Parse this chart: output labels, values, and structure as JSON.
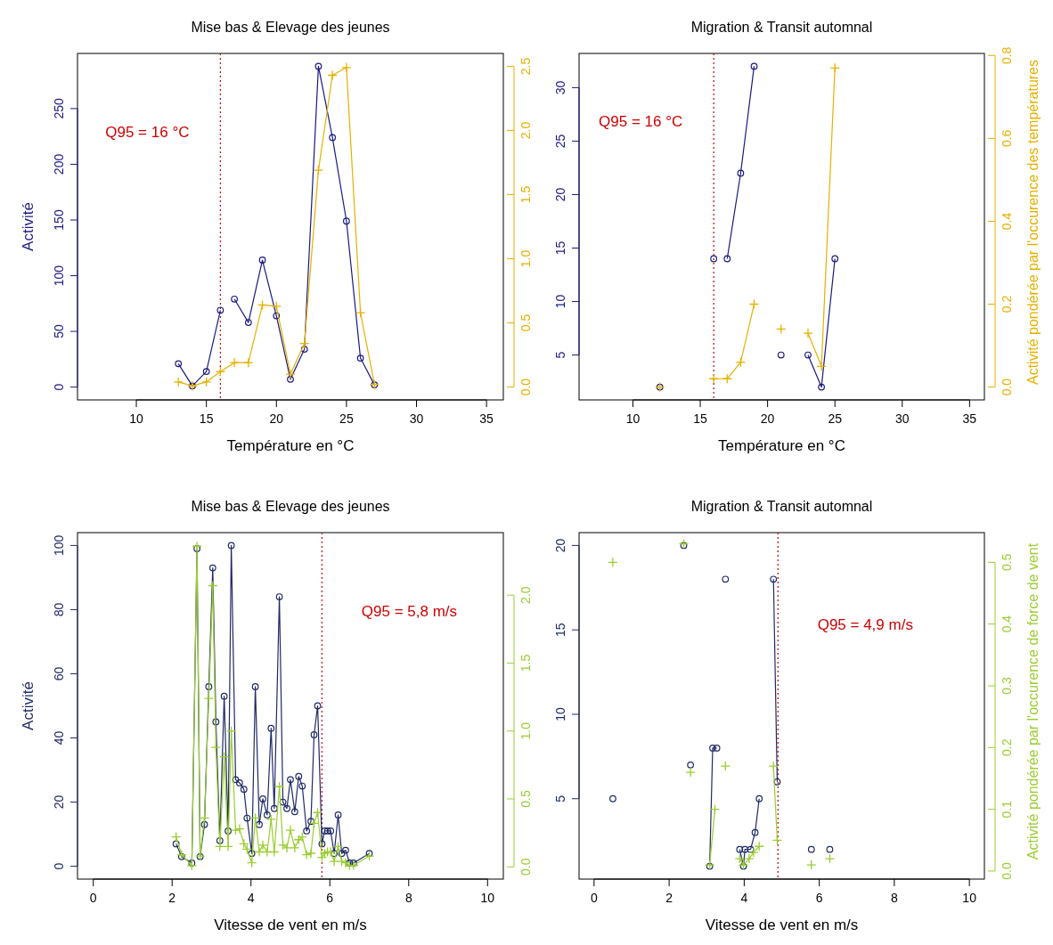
{
  "chart_data": [
    {
      "type": "line",
      "title": "Mise bas & Elevage des jeunes",
      "xlabel": "Température en °C",
      "ylabel": "Activité",
      "xlim": [
        5.8,
        36.2
      ],
      "xticks": [
        10,
        15,
        20,
        25,
        30,
        35
      ],
      "ylim": [
        -11.5,
        299.5
      ],
      "yticks": [
        0,
        50,
        100,
        150,
        200,
        250
      ],
      "y2lim": [
        -0.1,
        2.6
      ],
      "y2ticks": [
        {
          "value": 0,
          "label": "0.0"
        },
        {
          "value": 0.5,
          "label": "0.5"
        },
        {
          "value": 1,
          "label": "1.0"
        },
        {
          "value": 1.5,
          "label": "1.5"
        },
        {
          "value": 2,
          "label": "2.0"
        },
        {
          "value": 2.5,
          "label": "2.5"
        }
      ],
      "series": [
        {
          "color": "#1a1a80",
          "marker": "circle",
          "x": [
            13,
            14,
            15,
            16,
            16.5,
            17,
            18,
            19,
            20,
            21,
            22,
            23,
            24,
            25,
            26,
            27
          ],
          "values": [
            21,
            1,
            14,
            69,
            null,
            79,
            58,
            114,
            64,
            7,
            34,
            288,
            224,
            149,
            26,
            2
          ]
        },
        {
          "color": "#e6b000",
          "marker": "cross",
          "axis": "y2",
          "x": [
            13,
            14,
            15,
            16,
            17,
            18,
            19,
            20,
            21,
            22,
            23,
            24,
            25,
            26,
            27
          ],
          "values": [
            0.04,
            0.01,
            0.04,
            0.12,
            0.19,
            0.19,
            0.64,
            0.63,
            0.1,
            0.34,
            1.69,
            2.43,
            2.49,
            0.58,
            0.02
          ]
        }
      ],
      "ref_lines": [
        {
          "axis": "x",
          "value": 16,
          "color": "#cc0000",
          "line_style": "dotted",
          "label": "Q95 = 16 °C"
        }
      ]
    },
    {
      "type": "line",
      "title": "Migration & Transit automnal",
      "xlabel": "Température en °C",
      "y2label": "Activité pondérée par l'occurence des températures",
      "xlim": [
        6,
        36.1
      ],
      "xticks": [
        10,
        15,
        20,
        25,
        30,
        35
      ],
      "ylim": [
        0.8,
        33.2
      ],
      "yticks": [
        5,
        10,
        15,
        20,
        25,
        30
      ],
      "y2lim": [
        -0.031,
        0.805
      ],
      "y2ticks": [
        {
          "value": 0,
          "label": "0.0"
        },
        {
          "value": 0.2,
          "label": "0.2"
        },
        {
          "value": 0.4,
          "label": "0.4"
        },
        {
          "value": 0.6,
          "label": "0.6"
        },
        {
          "value": 0.8,
          "label": "0.8"
        }
      ],
      "series": [
        {
          "color": "#1a1a80",
          "marker": "circle",
          "x": [
            12,
            14,
            16,
            16.5,
            17,
            18,
            19,
            20,
            21,
            22,
            23,
            24,
            25
          ],
          "values": [
            2,
            null,
            14,
            null,
            14,
            22,
            32,
            null,
            5,
            null,
            5,
            2,
            14
          ]
        },
        {
          "color": "#e6b000",
          "marker": "cross",
          "axis": "y2",
          "x": [
            12,
            14,
            16,
            17,
            18,
            19,
            20,
            21,
            22,
            23,
            24,
            25
          ],
          "values": [
            0.0,
            null,
            0.02,
            0.02,
            0.06,
            0.2,
            null,
            0.14,
            null,
            0.13,
            0.05,
            0.77
          ]
        }
      ],
      "ref_lines": [
        {
          "axis": "x",
          "value": 16,
          "color": "#cc0000",
          "line_style": "dotted",
          "label": "Q95 = 16 °C"
        }
      ]
    },
    {
      "type": "line",
      "title": "Mise bas & Elevage des jeunes",
      "xlabel": "Vitesse de vent en m/s",
      "ylabel": "Activité",
      "xlim": [
        -0.4,
        10.4
      ],
      "xticks": [
        0,
        2,
        4,
        6,
        8,
        10
      ],
      "ylim": [
        -4,
        104
      ],
      "yticks": [
        0,
        20,
        40,
        60,
        80,
        100
      ],
      "y2lim": [
        -0.09,
        2.46
      ],
      "y2ticks": [
        {
          "value": 0,
          "label": "0.0"
        },
        {
          "value": 0.5,
          "label": "0.5"
        },
        {
          "value": 1,
          "label": "1.0"
        },
        {
          "value": 1.5,
          "label": "1.5"
        },
        {
          "value": 2,
          "label": "2.0"
        }
      ],
      "series": [
        {
          "color": "#1f2a66",
          "marker": "circle",
          "x": [
            2.1,
            2.24,
            2.5,
            2.63,
            2.71,
            2.82,
            2.93,
            3.03,
            3.11,
            3.21,
            3.32,
            3.42,
            3.5,
            3.61,
            3.71,
            3.82,
            3.9,
            4.02,
            4.11,
            4.21,
            4.3,
            4.41,
            4.51,
            4.59,
            4.72,
            4.81,
            4.91,
            5.0,
            5.11,
            5.21,
            5.3,
            5.41,
            5.52,
            5.6,
            5.69,
            5.8,
            5.87,
            5.94,
            6.02,
            6.11,
            6.21,
            6.3,
            6.4,
            6.5,
            6.6,
            7.0
          ],
          "values": [
            7,
            3,
            1,
            99,
            3,
            13,
            56,
            93,
            45,
            8,
            53,
            11,
            100,
            27,
            26,
            24,
            15,
            4,
            56,
            13,
            21,
            16,
            43,
            18,
            84,
            20,
            18,
            27,
            17,
            28,
            25,
            11,
            14,
            41,
            50,
            7,
            11,
            11,
            11,
            4,
            16,
            4,
            5,
            1,
            1,
            4
          ]
        },
        {
          "color": "#9acd32",
          "marker": "cross",
          "axis": "y2",
          "x": [
            2.1,
            2.24,
            2.5,
            2.63,
            2.71,
            2.82,
            2.93,
            3.03,
            3.11,
            3.21,
            3.32,
            3.42,
            3.5,
            3.61,
            3.71,
            3.82,
            3.9,
            4.02,
            4.11,
            4.21,
            4.3,
            4.41,
            4.51,
            4.59,
            4.72,
            4.81,
            4.91,
            5.0,
            5.11,
            5.21,
            5.3,
            5.41,
            5.52,
            5.6,
            5.69,
            5.8,
            5.87,
            5.94,
            6.02,
            6.11,
            6.21,
            6.3,
            6.4,
            6.5,
            6.6,
            7.0
          ],
          "values": [
            0.22,
            0.09,
            0.01,
            2.36,
            0.08,
            0.36,
            1.24,
            2.07,
            0.88,
            0.15,
            0.81,
            0.15,
            1.0,
            0.27,
            0.28,
            0.17,
            0.13,
            0.03,
            0.36,
            0.11,
            0.16,
            0.11,
            0.35,
            0.11,
            0.59,
            0.16,
            0.14,
            0.27,
            0.14,
            0.2,
            0.22,
            0.09,
            0.1,
            0.32,
            0.4,
            0.07,
            0.1,
            0.11,
            0.11,
            0.04,
            0.15,
            0.04,
            0.03,
            0.01,
            0.01,
            0.08
          ]
        }
      ],
      "ref_lines": [
        {
          "axis": "x",
          "value": 5.8,
          "color": "#cc0000",
          "line_style": "dotted",
          "label": "Q95 = 5,8 m/s"
        }
      ]
    },
    {
      "type": "line",
      "title": "Migration & Transit automnal",
      "xlabel": "Vitesse de vent en m/s",
      "y2label": "Activité pondérée par l'occurence de force de vent",
      "xlim": [
        -0.4,
        10.4
      ],
      "xticks": [
        0,
        2,
        4,
        6,
        8,
        10
      ],
      "ylim": [
        0.24,
        20.76
      ],
      "yticks": [
        5,
        10,
        15,
        20
      ],
      "y2lim": [
        -0.013,
        0.548
      ],
      "y2ticks": [
        {
          "value": 0,
          "label": "0.0"
        },
        {
          "value": 0.1,
          "label": "0.1"
        },
        {
          "value": 0.2,
          "label": "0.2"
        },
        {
          "value": 0.3,
          "label": "0.3"
        },
        {
          "value": 0.4,
          "label": "0.4"
        },
        {
          "value": 0.5,
          "label": "0.5"
        }
      ],
      "series": [
        {
          "color": "#1f2a66",
          "marker": "circle",
          "x": [
            0.5,
            1.5,
            2.39,
            2.48,
            2.57,
            2.8,
            3.08,
            3.16,
            3.27,
            3.4,
            3.5,
            3.7,
            3.88,
            3.98,
            4.02,
            4.17,
            4.29,
            4.4,
            4.6,
            4.78,
            4.88,
            5.3,
            5.79,
            6.0,
            6.28
          ],
          "values": [
            5,
            null,
            20,
            null,
            7,
            null,
            1,
            8,
            8,
            null,
            18,
            null,
            2,
            1,
            2,
            2,
            3,
            5,
            null,
            18,
            6,
            null,
            2,
            null,
            2
          ]
        },
        {
          "color": "#9acd32",
          "marker": "cross",
          "axis": "y2",
          "x": [
            0.5,
            1.5,
            2.39,
            2.48,
            2.57,
            2.8,
            3.08,
            3.22,
            3.4,
            3.5,
            3.7,
            3.88,
            3.98,
            4.13,
            4.25,
            4.4,
            4.6,
            4.78,
            4.88,
            5.3,
            5.79,
            6.0,
            6.28
          ],
          "values": [
            0.5,
            null,
            0.53,
            null,
            0.16,
            null,
            0.01,
            0.1,
            null,
            0.17,
            null,
            0.02,
            0.01,
            0.02,
            0.03,
            0.04,
            null,
            0.17,
            0.05,
            null,
            0.01,
            null,
            0.02
          ]
        }
      ],
      "ref_lines": [
        {
          "axis": "x",
          "value": 4.9,
          "color": "#cc0000",
          "line_style": "dotted",
          "label": "Q95 = 4,9 m/s"
        }
      ]
    }
  ]
}
